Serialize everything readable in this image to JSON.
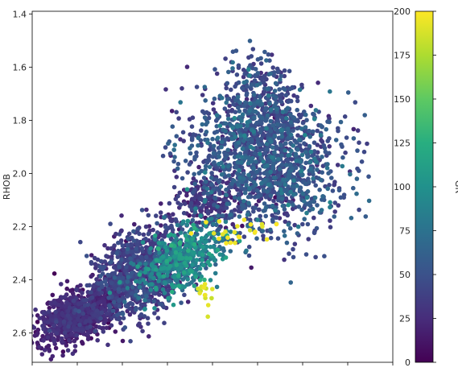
{
  "chart_data": {
    "type": "scatter",
    "title": "",
    "xlabel": "",
    "ylabel": "RHOB",
    "colorbar_label": "GR",
    "y_inverted": true,
    "ylim": [
      2.71,
      1.39
    ],
    "y_ticks": [
      1.4,
      1.6,
      1.8,
      2.0,
      2.2,
      2.4,
      2.6
    ],
    "y_tick_labels": [
      "1.4",
      "1.6",
      "1.8",
      "2.0",
      "2.2",
      "2.4",
      "2.6"
    ],
    "x_ticks_shown": 8,
    "colormap": "viridis",
    "clim": [
      0,
      200
    ],
    "colorbar_ticks": [
      0,
      25,
      50,
      75,
      100,
      125,
      150,
      175,
      200
    ],
    "colorbar_tick_labels": [
      "0",
      "25",
      "50",
      "75",
      "100",
      "125",
      "150",
      "175",
      "200"
    ],
    "marker_color_mid": "#3b528b",
    "cluster_summary": [
      {
        "rhob_range": [
          2.5,
          2.65
        ],
        "gr_typical": 20
      },
      {
        "rhob_range": [
          2.2,
          2.45
        ],
        "gr_typical": 35
      },
      {
        "rhob_range": [
          2.25,
          2.45
        ],
        "gr_typical": 85
      },
      {
        "rhob_range": [
          2.15,
          2.32
        ],
        "gr_typical": 195
      },
      {
        "rhob_range": [
          1.7,
          2.15
        ],
        "gr_typical": 50
      },
      {
        "rhob_range": [
          1.44,
          1.7
        ],
        "gr_typical": 45
      }
    ]
  }
}
